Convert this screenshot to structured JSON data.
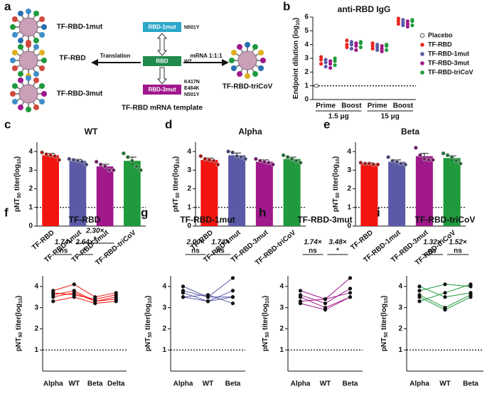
{
  "diagram": {
    "panel_label": "a",
    "particles": [
      "TF-RBD-1mut",
      "TF-RBD",
      "TF-RBD-3mut",
      "TF-RBD-triCoV"
    ],
    "templates": [
      {
        "label": "RBD-1mut",
        "mutations": [
          "N501Y"
        ]
      },
      {
        "label": "RBD",
        "mutations": [
          "WT"
        ]
      },
      {
        "label": "RBD-3mut",
        "mutations": [
          "K417N",
          "E484K",
          "N501Y"
        ]
      }
    ],
    "arrows": [
      "Translation",
      "mRNA 1:1:1"
    ],
    "caption": "TF-RBD mRNA template"
  },
  "chart_data": [
    {
      "type": "strip",
      "panel_label": "b",
      "title": "anti-RBD IgG",
      "ylabel": [
        "Endpoint dilution (log",
        "10",
        ")"
      ],
      "categories": [
        "Prime",
        "Boost",
        "Prime",
        "Boost"
      ],
      "groups": [
        "1.5 μg",
        "15 μg"
      ],
      "ylim": [
        0,
        6
      ],
      "yticks": [
        0,
        1,
        2,
        3,
        4,
        5,
        6
      ],
      "ref_line": 1,
      "series": [
        {
          "name": "Placebo",
          "color": "#888888",
          "values": [
            [
              1
            ],
            null,
            null,
            null
          ]
        },
        {
          "name": "TF-RBD",
          "color": "#e8261f",
          "values": [
            [
              2.6,
              2.9,
              3.1
            ],
            [
              3.8,
              4.0,
              4.3
            ],
            [
              3.7,
              3.9,
              4.1
            ],
            [
              5.5,
              5.7,
              5.9
            ]
          ]
        },
        {
          "name": "TF-RBD-1mut",
          "color": "#5a5aa8",
          "values": [
            [
              2.4,
              2.7,
              2.9
            ],
            [
              3.7,
              4.0,
              4.2
            ],
            [
              3.6,
              3.8,
              4.0
            ],
            [
              5.4,
              5.6,
              5.8
            ]
          ]
        },
        {
          "name": "TF-RBD-3mut",
          "color": "#a0188b",
          "values": [
            [
              2.3,
              2.6,
              2.8
            ],
            [
              3.6,
              3.9,
              4.1
            ],
            [
              3.5,
              3.7,
              3.9
            ],
            [
              5.3,
              5.5,
              5.7
            ]
          ]
        },
        {
          "name": "TF-RBD-triCoV",
          "color": "#1f9a3c",
          "values": [
            [
              2.5,
              2.8,
              3.0
            ],
            [
              3.8,
              4.1,
              4.2
            ],
            [
              3.6,
              3.9,
              4.0
            ],
            [
              5.4,
              5.7,
              5.8
            ]
          ]
        }
      ]
    },
    {
      "type": "bar",
      "panel_label": "c",
      "title": "WT",
      "ylabel": [
        "pNT",
        "50",
        " titer(log",
        "10",
        ")"
      ],
      "categories": [
        "TF-RBD",
        "TF-RBD-1mut",
        "TF-RBD-3mut",
        "TF-RBD-triCoV"
      ],
      "colors": [
        "#f2140f",
        "#5a5aa8",
        "#a0188b",
        "#1f9a3c"
      ],
      "values": [
        3.8,
        3.5,
        3.2,
        3.5
      ],
      "errors": [
        0.1,
        0.08,
        0.12,
        0.2
      ],
      "points": [
        [
          3.95,
          3.85,
          3.8,
          3.75,
          3.55
        ],
        [
          3.6,
          3.55,
          3.5,
          3.45,
          3.3
        ],
        [
          3.45,
          3.3,
          3.2,
          3.0,
          3.0
        ],
        [
          3.9,
          3.7,
          3.5,
          3.2,
          3.0
        ]
      ],
      "ylim": [
        0,
        4.5
      ],
      "yticks": [
        0,
        1,
        2,
        3,
        4
      ],
      "ref_line": 1
    },
    {
      "type": "bar",
      "panel_label": "d",
      "title": "Alpha",
      "ylabel": [
        "pNT",
        "50",
        " titer(log",
        "10",
        ")"
      ],
      "categories": [
        "TF-RBD",
        "TF-RBD-1mut",
        "TF-RBD-3mut",
        "TF-RBD-triCoV"
      ],
      "colors": [
        "#f2140f",
        "#5a5aa8",
        "#a0188b",
        "#1f9a3c"
      ],
      "values": [
        3.55,
        3.8,
        3.45,
        3.6
      ],
      "errors": [
        0.1,
        0.12,
        0.1,
        0.1
      ],
      "points": [
        [
          3.75,
          3.6,
          3.55,
          3.5,
          3.3
        ],
        [
          4.0,
          3.95,
          3.75,
          3.7,
          3.6
        ],
        [
          3.6,
          3.5,
          3.45,
          3.4,
          3.3
        ],
        [
          3.8,
          3.7,
          3.6,
          3.5,
          3.4
        ]
      ],
      "ylim": [
        0,
        4.5
      ],
      "yticks": [
        0,
        1,
        2,
        3,
        4
      ],
      "ref_line": 1
    },
    {
      "type": "bar",
      "panel_label": "e",
      "title": "Beta",
      "ylabel": [
        "pNT",
        "50",
        " titer(log",
        "10",
        ")"
      ],
      "categories": [
        "TF-RBD",
        "TF-RBD-1mut",
        "TF-RBD-3mut",
        "TF-RBD-triCoV"
      ],
      "colors": [
        "#f2140f",
        "#5a5aa8",
        "#a0188b",
        "#1f9a3c"
      ],
      "values": [
        3.35,
        3.45,
        3.75,
        3.65
      ],
      "errors": [
        0.05,
        0.1,
        0.15,
        0.12
      ],
      "points": [
        [
          3.4,
          3.35,
          3.35,
          3.3,
          3.3
        ],
        [
          3.7,
          3.5,
          3.45,
          3.35,
          3.3
        ],
        [
          4.2,
          3.8,
          3.6,
          3.55,
          3.55
        ],
        [
          3.9,
          3.8,
          3.7,
          3.5,
          3.35
        ]
      ],
      "ylim": [
        0,
        4.5
      ],
      "yticks": [
        0,
        1,
        2,
        3,
        4
      ],
      "ref_line": 1
    },
    {
      "type": "line",
      "panel_label": "f",
      "title": "TF-RBD",
      "ylabel": [
        "pNT",
        "50",
        " titer(log",
        "10",
        ")"
      ],
      "color": "#f2140f",
      "categories": [
        "Alpha",
        "WT",
        "Beta",
        "Delta"
      ],
      "ylim": [
        0,
        4.5
      ],
      "yticks": [
        1,
        2,
        3,
        4
      ],
      "ref_line": 1,
      "series": [
        {
          "values": [
            3.8,
            4.1,
            3.5,
            3.7
          ]
        },
        {
          "values": [
            3.6,
            3.8,
            3.3,
            3.5
          ]
        },
        {
          "values": [
            3.5,
            3.7,
            3.3,
            3.4
          ]
        },
        {
          "values": [
            3.3,
            3.5,
            3.2,
            3.3
          ]
        },
        {
          "values": [
            3.7,
            3.6,
            3.4,
            3.6
          ]
        }
      ],
      "annotations": [
        {
          "from": 0,
          "to": 1,
          "sig": "ns",
          "fold": "1.74×"
        },
        {
          "from": 1,
          "to": 2,
          "sig": "*",
          "fold": "2.64×"
        },
        {
          "from": 1,
          "to": 3,
          "sig": "*",
          "fold": "2.30×"
        }
      ]
    },
    {
      "type": "line",
      "panel_label": "g",
      "title": "TF-RBD-1mut",
      "ylabel": [
        "pNT",
        "50",
        " titer(log",
        "10",
        ")"
      ],
      "color": "#5a5aa8",
      "categories": [
        "Alpha",
        "WT",
        "Beta"
      ],
      "ylim": [
        0,
        4.5
      ],
      "yticks": [
        1,
        2,
        3,
        4
      ],
      "ref_line": 1,
      "series": [
        {
          "values": [
            4.0,
            3.5,
            4.4
          ]
        },
        {
          "values": [
            3.8,
            3.5,
            3.5
          ]
        },
        {
          "values": [
            3.7,
            3.3,
            3.5
          ]
        },
        {
          "values": [
            3.5,
            3.6,
            3.2
          ]
        },
        {
          "values": [
            3.5,
            3.3,
            3.8
          ]
        }
      ],
      "annotations": [
        {
          "from": 0,
          "to": 1,
          "sig": "ns",
          "fold": "2.00×"
        },
        {
          "from": 1,
          "to": 2,
          "sig": "ns",
          "fold": "1.74×"
        }
      ]
    },
    {
      "type": "line",
      "panel_label": "h",
      "title": "TF-RBD-3mut",
      "ylabel": [
        "pNT",
        "50",
        " titer(log",
        "10",
        ")"
      ],
      "color": "#a0188b",
      "categories": [
        "Alpha",
        "WT",
        "Beta"
      ],
      "ylim": [
        0,
        4.5
      ],
      "yticks": [
        1,
        2,
        3,
        4
      ],
      "ref_line": 1,
      "series": [
        {
          "values": [
            3.8,
            3.4,
            4.4
          ]
        },
        {
          "values": [
            3.5,
            3.0,
            3.5
          ]
        },
        {
          "values": [
            3.6,
            3.2,
            3.9
          ]
        },
        {
          "values": [
            3.3,
            3.4,
            3.7
          ]
        },
        {
          "values": [
            3.2,
            2.9,
            3.5
          ]
        }
      ],
      "annotations": [
        {
          "from": 0,
          "to": 1,
          "sig": "ns",
          "fold": "1.74×"
        },
        {
          "from": 1,
          "to": 2,
          "sig": "*",
          "fold": "3.48×"
        }
      ]
    },
    {
      "type": "line",
      "panel_label": "i",
      "title": "TF-RBD-triCoV",
      "ylabel": [
        "pNT",
        "50",
        " titer(log",
        "10",
        ")"
      ],
      "color": "#1f9a3c",
      "categories": [
        "Alpha",
        "WT",
        "Beta"
      ],
      "ylim": [
        0,
        4.5
      ],
      "yticks": [
        1,
        2,
        3,
        4
      ],
      "ref_line": 1,
      "series": [
        {
          "values": [
            4.0,
            3.5,
            3.7
          ]
        },
        {
          "values": [
            3.8,
            4.1,
            4.0
          ]
        },
        {
          "values": [
            3.6,
            3.0,
            3.6
          ]
        },
        {
          "values": [
            3.5,
            2.9,
            3.5
          ]
        },
        {
          "values": [
            3.3,
            3.7,
            4.1
          ]
        }
      ],
      "annotations": [
        {
          "from": 0,
          "to": 1,
          "sig": "ns",
          "fold": "1.32×"
        },
        {
          "from": 1,
          "to": 2,
          "sig": "ns",
          "fold": "1.52×"
        }
      ]
    }
  ]
}
